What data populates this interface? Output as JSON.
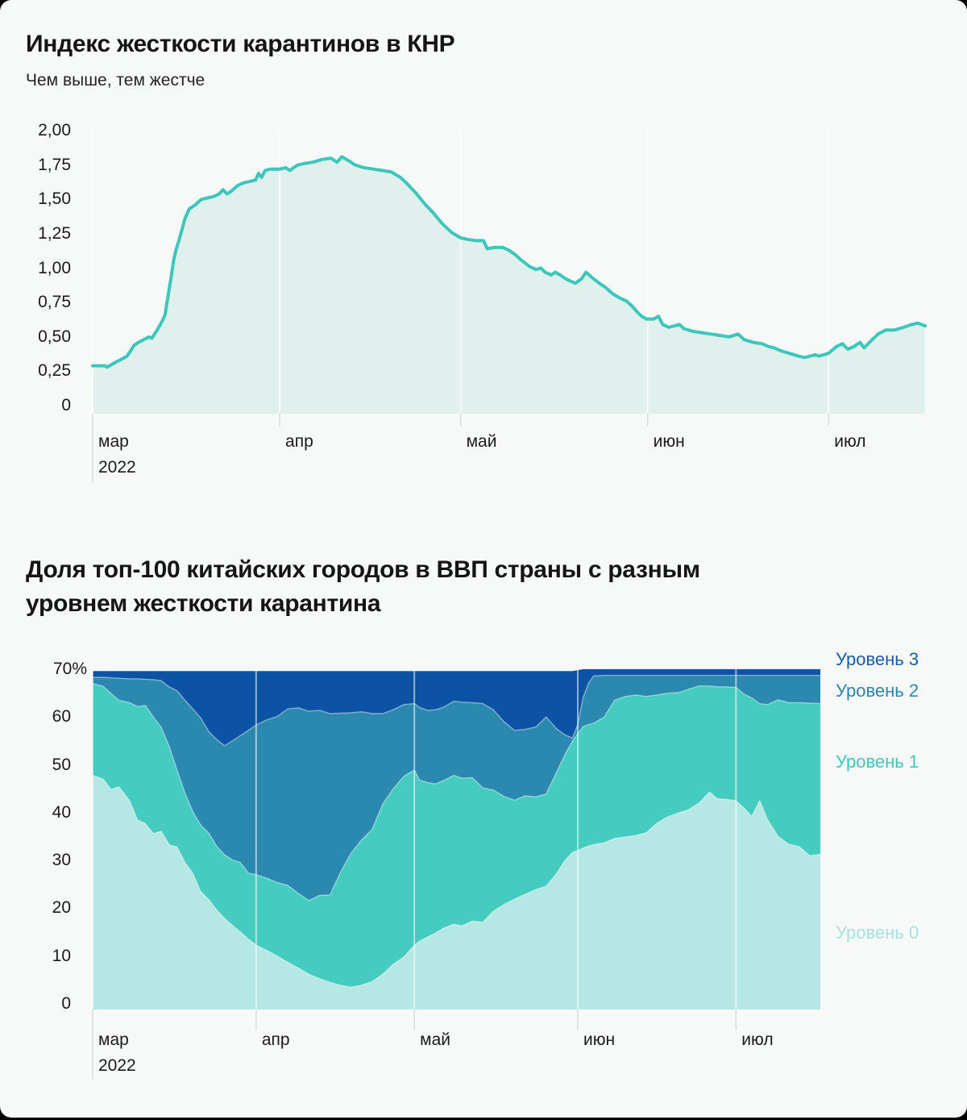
{
  "chart_data": [
    {
      "type": "area",
      "title": "Индекс жесткости карантинов в КНР",
      "subtitle": "Чем выше, тем жестче",
      "ylabel": "",
      "xlabel": "",
      "ylim": [
        0,
        2.0
      ],
      "grid": "vertical-months",
      "colors": {
        "line": "#3fc6ba",
        "fill": "#dff0ed"
      },
      "y_ticks": [
        {
          "label": "2,00",
          "value": 2.0
        },
        {
          "label": "1,75",
          "value": 1.75
        },
        {
          "label": "1,50",
          "value": 1.5
        },
        {
          "label": "1,25",
          "value": 1.25
        },
        {
          "label": "1,00",
          "value": 1.0
        },
        {
          "label": "0,75",
          "value": 0.75
        },
        {
          "label": "0,50",
          "value": 0.5
        },
        {
          "label": "0,25",
          "value": 0.25
        },
        {
          "label": "0",
          "value": 0
        }
      ],
      "x_months": [
        {
          "label": "мар",
          "day": 0
        },
        {
          "label": "апр",
          "day": 31
        },
        {
          "label": "май",
          "day": 61
        },
        {
          "label": "июн",
          "day": 92
        },
        {
          "label": "июл",
          "day": 122
        }
      ],
      "year_label": "2022",
      "points": [
        [
          0,
          0.29
        ],
        [
          1,
          0.29
        ],
        [
          2,
          0.29
        ],
        [
          2.4,
          0.28
        ],
        [
          3.6,
          0.31
        ],
        [
          4.9,
          0.34
        ],
        [
          5.7,
          0.36
        ],
        [
          6.9,
          0.44
        ],
        [
          7.6,
          0.46
        ],
        [
          8.9,
          0.49
        ],
        [
          9.3,
          0.5
        ],
        [
          9.8,
          0.49
        ],
        [
          10.7,
          0.55
        ],
        [
          11.6,
          0.62
        ],
        [
          12,
          0.66
        ],
        [
          12.5,
          0.8
        ],
        [
          13,
          0.93
        ],
        [
          13.4,
          1.05
        ],
        [
          13.8,
          1.13
        ],
        [
          14.3,
          1.2
        ],
        [
          14.8,
          1.28
        ],
        [
          15.3,
          1.36
        ],
        [
          16,
          1.43
        ],
        [
          17,
          1.46
        ],
        [
          18,
          1.5
        ],
        [
          19,
          1.51
        ],
        [
          20,
          1.52
        ],
        [
          21,
          1.54
        ],
        [
          21.6,
          1.57
        ],
        [
          22.3,
          1.54
        ],
        [
          23,
          1.56
        ],
        [
          24,
          1.6
        ],
        [
          25,
          1.62
        ],
        [
          26,
          1.63
        ],
        [
          27,
          1.64
        ],
        [
          27.5,
          1.69
        ],
        [
          28,
          1.66
        ],
        [
          28.6,
          1.71
        ],
        [
          29.5,
          1.72
        ],
        [
          31,
          1.72
        ],
        [
          32,
          1.73
        ],
        [
          32.7,
          1.71
        ],
        [
          33.3,
          1.73
        ],
        [
          34,
          1.75
        ],
        [
          35,
          1.76
        ],
        [
          36.5,
          1.77
        ],
        [
          38,
          1.79
        ],
        [
          39.5,
          1.8
        ],
        [
          40.5,
          1.77
        ],
        [
          41.3,
          1.81
        ],
        [
          42.5,
          1.78
        ],
        [
          43.5,
          1.75
        ],
        [
          45,
          1.73
        ],
        [
          46.5,
          1.72
        ],
        [
          48,
          1.71
        ],
        [
          49.5,
          1.7
        ],
        [
          51,
          1.66
        ],
        [
          52,
          1.62
        ],
        [
          53.5,
          1.55
        ],
        [
          55,
          1.47
        ],
        [
          56.5,
          1.4
        ],
        [
          58,
          1.32
        ],
        [
          59.5,
          1.26
        ],
        [
          61,
          1.22
        ],
        [
          62,
          1.21
        ],
        [
          63.5,
          1.2
        ],
        [
          64.8,
          1.2
        ],
        [
          65.4,
          1.14
        ],
        [
          66.5,
          1.15
        ],
        [
          68,
          1.15
        ],
        [
          69,
          1.13
        ],
        [
          70,
          1.1
        ],
        [
          71,
          1.06
        ],
        [
          72.5,
          1.01
        ],
        [
          73.5,
          0.99
        ],
        [
          74.3,
          1.0
        ],
        [
          75,
          0.97
        ],
        [
          76,
          0.95
        ],
        [
          76.7,
          0.97
        ],
        [
          77.5,
          0.95
        ],
        [
          78.5,
          0.92
        ],
        [
          80,
          0.89
        ],
        [
          81,
          0.92
        ],
        [
          81.8,
          0.97
        ],
        [
          82.8,
          0.93
        ],
        [
          84,
          0.89
        ],
        [
          85,
          0.86
        ],
        [
          86.3,
          0.81
        ],
        [
          87.5,
          0.78
        ],
        [
          88.5,
          0.76
        ],
        [
          89.5,
          0.72
        ],
        [
          90.3,
          0.68
        ],
        [
          91,
          0.65
        ],
        [
          91.8,
          0.63
        ],
        [
          93,
          0.63
        ],
        [
          93.8,
          0.65
        ],
        [
          94.5,
          0.59
        ],
        [
          95.5,
          0.57
        ],
        [
          96.5,
          0.58
        ],
        [
          97.3,
          0.59
        ],
        [
          98,
          0.56
        ],
        [
          99.5,
          0.54
        ],
        [
          101,
          0.53
        ],
        [
          102.5,
          0.52
        ],
        [
          104,
          0.51
        ],
        [
          105.5,
          0.5
        ],
        [
          107,
          0.52
        ],
        [
          108,
          0.48
        ],
        [
          109.5,
          0.46
        ],
        [
          111,
          0.45
        ],
        [
          112,
          0.43
        ],
        [
          113,
          0.42
        ],
        [
          114,
          0.4
        ],
        [
          115.5,
          0.38
        ],
        [
          117,
          0.36
        ],
        [
          118,
          0.35
        ],
        [
          119,
          0.36
        ],
        [
          119.8,
          0.37
        ],
        [
          120.4,
          0.36
        ],
        [
          121.2,
          0.37
        ],
        [
          122,
          0.38
        ],
        [
          123.3,
          0.43
        ],
        [
          124.3,
          0.45
        ],
        [
          125.2,
          0.41
        ],
        [
          126.2,
          0.43
        ],
        [
          127.2,
          0.46
        ],
        [
          127.9,
          0.42
        ],
        [
          129,
          0.47
        ],
        [
          130.2,
          0.52
        ],
        [
          131.5,
          0.55
        ],
        [
          133,
          0.55
        ],
        [
          134.5,
          0.57
        ],
        [
          135.8,
          0.59
        ],
        [
          136.8,
          0.6
        ],
        [
          137.4,
          0.59
        ],
        [
          138,
          0.58
        ]
      ]
    },
    {
      "type": "stacked-area",
      "title": "Доля топ-100 китайских городов в ВВП страны с разным уровнем жесткости карантина",
      "title_lines": [
        "Доля топ-100 китайских городов в ВВП страны с разным",
        "уровнем жесткости карантина"
      ],
      "ylim": [
        0,
        70
      ],
      "grid": "vertical-months",
      "y_ticks": [
        {
          "label": "70%",
          "value": 70
        },
        {
          "label": "60",
          "value": 60
        },
        {
          "label": "50",
          "value": 50
        },
        {
          "label": "40",
          "value": 40
        },
        {
          "label": "30",
          "value": 30
        },
        {
          "label": "20",
          "value": 20
        },
        {
          "label": "10",
          "value": 10
        },
        {
          "label": "0",
          "value": 0
        }
      ],
      "x_months": [
        {
          "label": "мар",
          "day": 0
        },
        {
          "label": "апр",
          "day": 31
        },
        {
          "label": "май",
          "day": 61
        },
        {
          "label": "июн",
          "day": 92
        },
        {
          "label": "июл",
          "day": 122
        }
      ],
      "year_label": "2022",
      "legend": [
        {
          "label": "Уровень 3",
          "color": "#1a5ca8"
        },
        {
          "label": "Уровень 2",
          "color": "#2f86ae"
        },
        {
          "label": "Уровень 1",
          "color": "#41c7bb"
        },
        {
          "label": "Уровень 0",
          "color": "#a9e1dd"
        }
      ],
      "series_colors": {
        "level3": "#0d53a5",
        "level2": "#2b88ae",
        "level1": "#46cbc0",
        "level0": "#b5e8e4"
      },
      "days": [
        0,
        2,
        3.5,
        5,
        7,
        8.5,
        10,
        11.5,
        13,
        14.5,
        16,
        17.5,
        19,
        20.5,
        22,
        23.5,
        25,
        26.5,
        28,
        29.5,
        31,
        33,
        35,
        37,
        39,
        41,
        43,
        45,
        47,
        49,
        51,
        53,
        55,
        57,
        59,
        61,
        62,
        63.5,
        65,
        66.5,
        68.5,
        70,
        72,
        74,
        76,
        78,
        80,
        82,
        84,
        86,
        88,
        89.5,
        91,
        92,
        93,
        94,
        95,
        97,
        99,
        101,
        103,
        105,
        107,
        109,
        111,
        113,
        115,
        117,
        118.5,
        120,
        122,
        123.5,
        125,
        126.5,
        128,
        130,
        132,
        134,
        136,
        138
      ],
      "cumulative_tops": {
        "level0": [
          47.8,
          47.0,
          44.8,
          45.4,
          42.5,
          38.5,
          37.7,
          35.6,
          36.1,
          33.3,
          32.8,
          29.6,
          27.3,
          23.5,
          21.8,
          19.7,
          17.9,
          16.4,
          15.1,
          13.6,
          12.3,
          11.2,
          10.0,
          8.7,
          7.5,
          6.2,
          5.3,
          4.5,
          3.9,
          3.5,
          3.9,
          4.7,
          6.2,
          8.3,
          9.8,
          12.3,
          13.1,
          14.0,
          14.8,
          15.8,
          16.7,
          16.3,
          17.3,
          17.1,
          19.4,
          20.8,
          21.9,
          22.9,
          23.9,
          24.6,
          27.3,
          29.9,
          31.7,
          32.1,
          32.6,
          33.0,
          33.3,
          33.7,
          34.6,
          34.9,
          35.2,
          35.8,
          37.8,
          39.1,
          39.9,
          40.6,
          42.0,
          44.3,
          42.9,
          42.8,
          42.5,
          41.0,
          39.2,
          42.5,
          38.5,
          35.0,
          33.4,
          32.9,
          31.0,
          31.3
        ],
        "level1": [
          67.0,
          66.4,
          64.9,
          63.5,
          63.0,
          62.2,
          62.4,
          60.0,
          57.8,
          53.9,
          48.9,
          44.1,
          40.2,
          37.4,
          35.7,
          33.0,
          31.2,
          30.1,
          29.6,
          27.4,
          27.0,
          26.3,
          25.4,
          24.8,
          23.1,
          21.6,
          22.7,
          22.8,
          27.5,
          31.5,
          34.3,
          36.5,
          41.8,
          45.0,
          47.6,
          48.9,
          46.8,
          46.3,
          46.0,
          46.7,
          47.8,
          47.2,
          47.3,
          45.2,
          44.7,
          43.4,
          42.6,
          43.5,
          43.3,
          43.9,
          48.5,
          52.0,
          55.0,
          56.5,
          58.0,
          58.4,
          58.7,
          60.0,
          63.5,
          64.3,
          64.6,
          64.3,
          64.6,
          65.0,
          65.1,
          65.8,
          66.5,
          66.5,
          66.3,
          66.3,
          66.2,
          64.8,
          64.0,
          62.8,
          62.6,
          63.6,
          63.0,
          63.0,
          62.9,
          62.8
        ],
        "level2": [
          68.3,
          68.3,
          68.2,
          68.1,
          68.0,
          68.0,
          67.9,
          67.8,
          67.6,
          66.3,
          65.5,
          63.5,
          61.7,
          59.8,
          57.0,
          55.3,
          54.0,
          55.0,
          56.1,
          57.2,
          58.3,
          59.4,
          60.1,
          61.7,
          61.9,
          61.2,
          61.4,
          60.7,
          60.8,
          60.9,
          61.1,
          60.7,
          60.7,
          61.5,
          62.6,
          62.8,
          62.0,
          61.4,
          61.5,
          62.0,
          63.3,
          63.1,
          63.0,
          62.8,
          61.5,
          59.0,
          57.2,
          57.4,
          57.9,
          60.0,
          57.5,
          56.3,
          55.6,
          58.5,
          64.0,
          67.0,
          68.6,
          68.7,
          68.7,
          68.7,
          68.7,
          68.7,
          68.7,
          68.7,
          68.7,
          68.7,
          68.7,
          68.7,
          68.7,
          68.7,
          68.7,
          68.7,
          68.7,
          68.7,
          68.7,
          68.7,
          68.7,
          68.7,
          68.7,
          68.7
        ],
        "level3": [
          69.6,
          69.6,
          69.6,
          69.6,
          69.6,
          69.6,
          69.6,
          69.6,
          69.6,
          69.6,
          69.6,
          69.6,
          69.6,
          69.6,
          69.6,
          69.6,
          69.6,
          69.6,
          69.6,
          69.6,
          69.6,
          69.6,
          69.6,
          69.6,
          69.6,
          69.6,
          69.6,
          69.6,
          69.6,
          69.6,
          69.6,
          69.6,
          69.6,
          69.6,
          69.6,
          69.6,
          69.6,
          69.6,
          69.6,
          69.6,
          69.6,
          69.6,
          69.6,
          69.6,
          69.6,
          69.6,
          69.6,
          69.6,
          69.6,
          69.6,
          69.6,
          69.6,
          69.6,
          69.8,
          70.0,
          70.0,
          70.0,
          70.0,
          70.0,
          70.0,
          70.0,
          70.0,
          70.0,
          70.0,
          70.0,
          70.0,
          70.0,
          70.0,
          70.0,
          70.0,
          70.0,
          70.0,
          70.0,
          70.0,
          70.0,
          70.0,
          70.0,
          70.0,
          70.0,
          70.0
        ]
      }
    }
  ]
}
